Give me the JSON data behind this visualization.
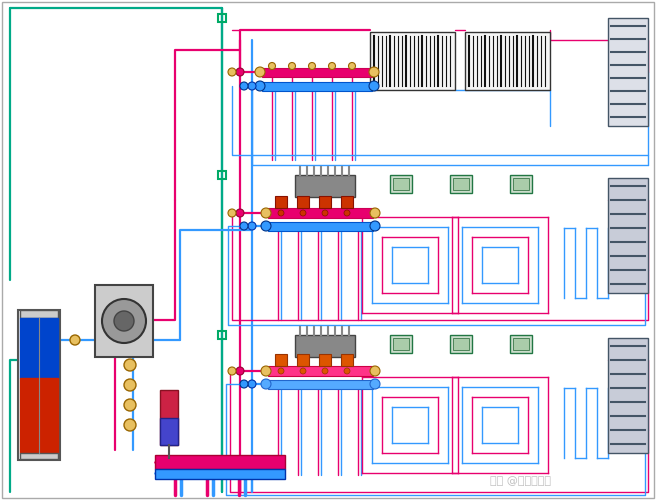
{
  "bg_color": "#ffffff",
  "pipe_hot": "#e8006e",
  "pipe_cold": "#3399ff",
  "pipe_green": "#00aa88",
  "green_box": "#00aa66",
  "watermark_color": "#c0c0c0",
  "watermark_text": "知乎 @鸟叔说人话"
}
